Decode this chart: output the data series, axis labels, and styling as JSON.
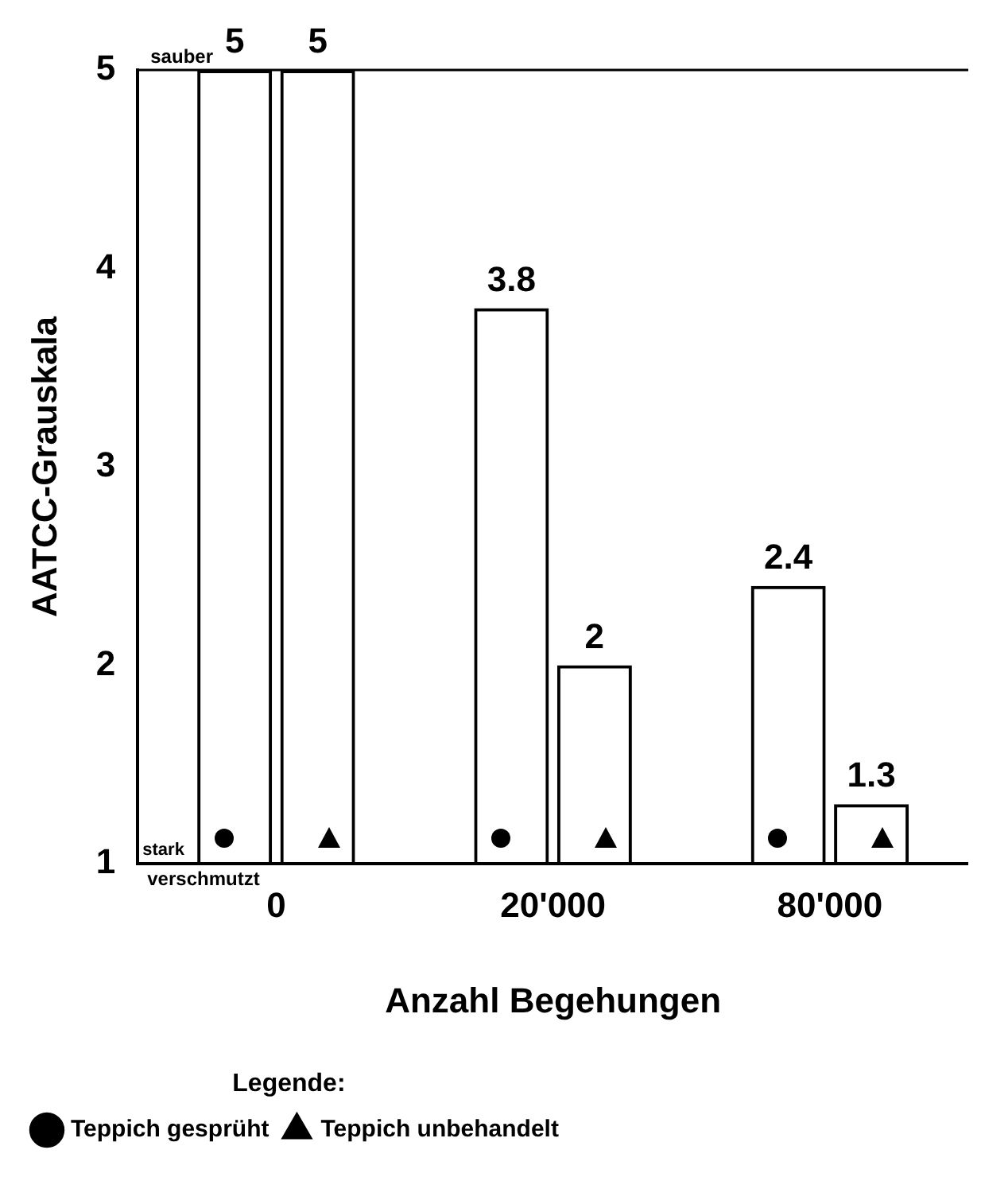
{
  "chart_data": {
    "type": "bar",
    "xlabel": "Anzahl Begehungen",
    "ylabel": "AATCC-Grauskala",
    "categories": [
      "0",
      "20'000",
      "80'000"
    ],
    "series": [
      {
        "name": "Teppich gesprüht",
        "color": "#000000",
        "marker": "circle",
        "values": [
          5,
          3.8,
          2.4
        ]
      },
      {
        "name": "Teppich unbehandelt",
        "color": "#000000",
        "marker": "triangle",
        "values": [
          5,
          2,
          1.3
        ]
      }
    ],
    "ylim": [
      1,
      5
    ],
    "yticks": [
      1,
      2,
      3,
      4,
      5
    ],
    "data_labels": true,
    "legend": "bottom",
    "legend_title": "Legende:",
    "annotations": [
      "sauber",
      "stark verschmutzt"
    ]
  }
}
